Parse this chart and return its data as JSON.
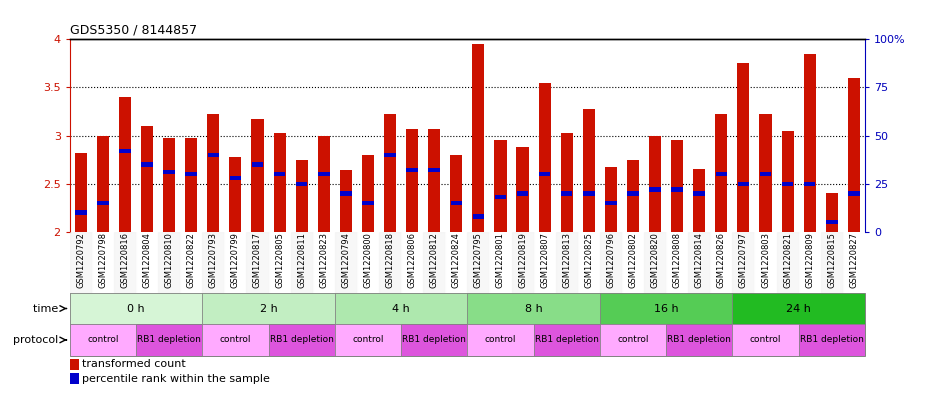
{
  "title": "GDS5350 / 8144857",
  "samples": [
    "GSM1220792",
    "GSM1220798",
    "GSM1220816",
    "GSM1220804",
    "GSM1220810",
    "GSM1220822",
    "GSM1220793",
    "GSM1220799",
    "GSM1220817",
    "GSM1220805",
    "GSM1220811",
    "GSM1220823",
    "GSM1220794",
    "GSM1220800",
    "GSM1220818",
    "GSM1220806",
    "GSM1220812",
    "GSM1220824",
    "GSM1220795",
    "GSM1220801",
    "GSM1220819",
    "GSM1220807",
    "GSM1220813",
    "GSM1220825",
    "GSM1220796",
    "GSM1220802",
    "GSM1220820",
    "GSM1220808",
    "GSM1220814",
    "GSM1220826",
    "GSM1220797",
    "GSM1220803",
    "GSM1220821",
    "GSM1220809",
    "GSM1220815",
    "GSM1220827"
  ],
  "transformed_counts": [
    2.82,
    3.0,
    3.4,
    3.1,
    2.97,
    2.97,
    3.22,
    2.78,
    3.17,
    3.03,
    2.75,
    3.0,
    2.64,
    2.8,
    3.22,
    3.07,
    3.07,
    2.8,
    3.95,
    2.95,
    2.88,
    3.55,
    3.03,
    3.28,
    2.67,
    2.75,
    3.0,
    2.95,
    2.65,
    3.22,
    3.75,
    3.22,
    3.05,
    3.85,
    2.4,
    3.6
  ],
  "percentile_ranks": [
    10,
    15,
    42,
    35,
    31,
    30,
    40,
    28,
    35,
    30,
    25,
    30,
    20,
    15,
    40,
    32,
    32,
    15,
    8,
    18,
    20,
    30,
    20,
    20,
    15,
    20,
    22,
    22,
    20,
    30,
    25,
    30,
    25,
    25,
    5,
    20
  ],
  "time_groups": [
    {
      "label": "0 h",
      "start": 0,
      "end": 6
    },
    {
      "label": "2 h",
      "start": 6,
      "end": 12
    },
    {
      "label": "4 h",
      "start": 12,
      "end": 18
    },
    {
      "label": "8 h",
      "start": 18,
      "end": 24
    },
    {
      "label": "16 h",
      "start": 24,
      "end": 30
    },
    {
      "label": "24 h",
      "start": 30,
      "end": 36
    }
  ],
  "time_colors": [
    "#d6f5d6",
    "#c2eec2",
    "#aee8ae",
    "#88dd88",
    "#55cc55",
    "#22bb22"
  ],
  "protocol_groups": [
    {
      "label": "control",
      "start": 0,
      "end": 3
    },
    {
      "label": "RB1 depletion",
      "start": 3,
      "end": 6
    },
    {
      "label": "control",
      "start": 6,
      "end": 9
    },
    {
      "label": "RB1 depletion",
      "start": 9,
      "end": 12
    },
    {
      "label": "control",
      "start": 12,
      "end": 15
    },
    {
      "label": "RB1 depletion",
      "start": 15,
      "end": 18
    },
    {
      "label": "control",
      "start": 18,
      "end": 21
    },
    {
      "label": "RB1 depletion",
      "start": 21,
      "end": 24
    },
    {
      "label": "control",
      "start": 24,
      "end": 27
    },
    {
      "label": "RB1 depletion",
      "start": 27,
      "end": 30
    },
    {
      "label": "control",
      "start": 30,
      "end": 33
    },
    {
      "label": "RB1 depletion",
      "start": 33,
      "end": 36
    }
  ],
  "proto_color_control": "#ffaaff",
  "proto_color_depletion": "#dd55dd",
  "ylim_left": [
    2.0,
    4.0
  ],
  "ylim_right": [
    0,
    100
  ],
  "bar_color": "#cc1100",
  "percentile_color": "#0000cc",
  "background_color": "#ffffff",
  "label_color_left": "#cc1100",
  "label_color_right": "#0000bb"
}
